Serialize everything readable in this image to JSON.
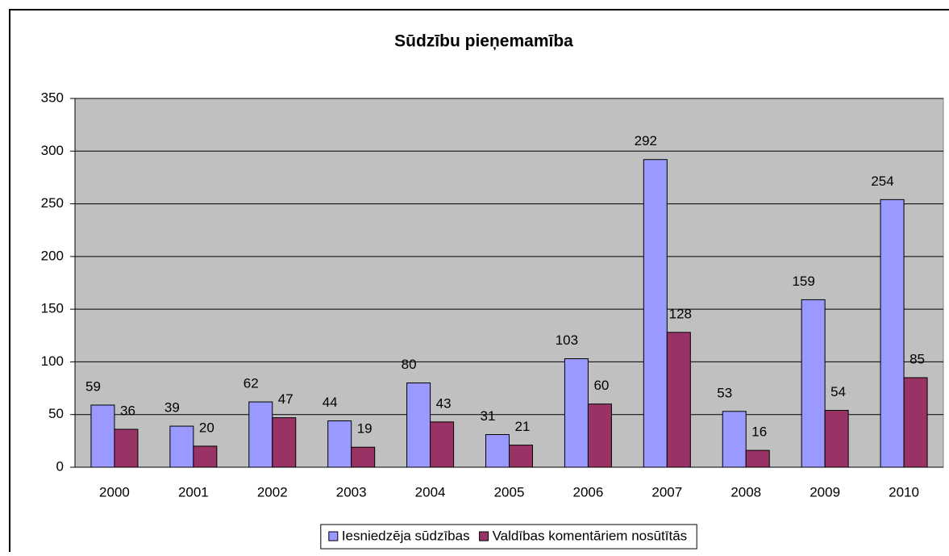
{
  "chart_data": {
    "type": "bar",
    "title": "Sūdzību pieņemamība",
    "categories": [
      "2000",
      "2001",
      "2002",
      "2003",
      "2004",
      "2005",
      "2006",
      "2007",
      "2008",
      "2009",
      "2010"
    ],
    "series": [
      {
        "name": "Iesniedzēja sūdzības",
        "color": "#9999ff",
        "values": [
          59,
          39,
          62,
          44,
          80,
          31,
          103,
          292,
          53,
          159,
          254
        ]
      },
      {
        "name": "Valdības komentāriem nosūtītās",
        "color": "#993366",
        "values": [
          36,
          20,
          47,
          19,
          43,
          21,
          60,
          128,
          16,
          54,
          85
        ]
      }
    ],
    "ylim": [
      0,
      350
    ],
    "yticks": [
      0,
      50,
      100,
      150,
      200,
      250,
      300,
      350
    ],
    "grid": true,
    "legend": "bottom"
  }
}
